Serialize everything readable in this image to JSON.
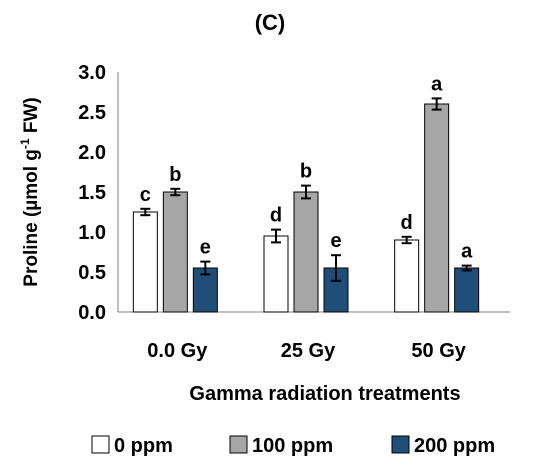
{
  "chart_data": {
    "type": "bar",
    "title": "(C)",
    "xlabel": "Gamma radiation treatments",
    "ylabel": {
      "prefix": "Proline (µmol g",
      "superscript": "-1",
      "suffix": " FW)"
    },
    "categories": [
      "0.0 Gy",
      "25 Gy",
      "50 Gy"
    ],
    "ylim": [
      0,
      3.0
    ],
    "yticks": [
      "0.0",
      "0.5",
      "1.0",
      "1.5",
      "2.0",
      "2.5",
      "3.0"
    ],
    "grid": false,
    "legend_position": "bottom",
    "series": [
      {
        "name": "0 ppm",
        "color": "#ffffff",
        "values": [
          1.25,
          0.95,
          0.9
        ],
        "errors": [
          0.04,
          0.08,
          0.04
        ],
        "letters": [
          "c",
          "d",
          "d"
        ]
      },
      {
        "name": "100 ppm",
        "color": "#a6a6a6",
        "values": [
          1.5,
          1.5,
          2.6
        ],
        "errors": [
          0.04,
          0.08,
          0.07
        ],
        "letters": [
          "b",
          "b",
          "a"
        ]
      },
      {
        "name": "200 ppm",
        "color": "#1f4e79",
        "values": [
          0.55,
          0.55,
          0.55
        ],
        "errors": [
          0.08,
          0.16,
          0.03
        ],
        "letters": [
          "e",
          "e",
          "a"
        ]
      }
    ]
  }
}
